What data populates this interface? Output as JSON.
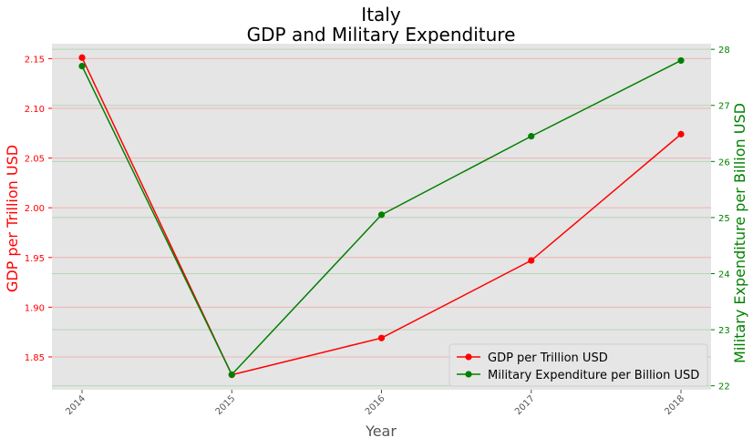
{
  "chart_data": {
    "type": "line",
    "title": "Italy",
    "subtitle": "GDP and Military Expenditure",
    "xlabel": "Year",
    "ylabel_left": "GDP per Trillion USD",
    "ylabel_right": "Military Expenditure per Billion USD",
    "x": [
      2014,
      2015,
      2016,
      2017,
      2018
    ],
    "x_tick_labels": [
      "2014",
      "2015",
      "2016",
      "2017",
      "2018"
    ],
    "ylim_left": [
      1.817,
      2.165
    ],
    "ylim_right": [
      21.93,
      28.1
    ],
    "y_ticks_left": [
      "1.85",
      "1.90",
      "1.95",
      "2.00",
      "2.05",
      "2.10",
      "2.15"
    ],
    "y_ticks_right": [
      "22",
      "23",
      "24",
      "25",
      "26",
      "27",
      "28"
    ],
    "grid": true,
    "legend_placement": "lower-right",
    "series": [
      {
        "name": "GDP per Trillion USD",
        "axis": "left",
        "color": "#ff0000",
        "values": [
          2.151,
          1.832,
          1.869,
          1.947,
          2.074
        ]
      },
      {
        "name": "Military Expenditure per Billion USD",
        "axis": "right",
        "color": "#008000",
        "values": [
          27.7,
          22.2,
          25.05,
          26.45,
          27.8
        ]
      }
    ]
  }
}
